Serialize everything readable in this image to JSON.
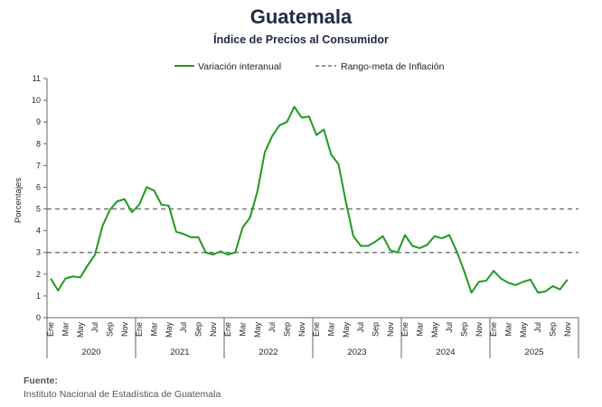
{
  "header": {
    "title": "Guatemala",
    "subtitle": "Índice de Precios al Consumidor"
  },
  "footer": {
    "label": "Fuente:",
    "source": "Instituto Nacional de Estadística de Guatemala"
  },
  "colors": {
    "series": "#1e9a1e",
    "band": "#777777",
    "axis": "#666666"
  },
  "chart_data": {
    "type": "line",
    "title": "Índice de Precios al Consumidor",
    "ylabel": "Porcentajes",
    "xlabel": "",
    "ylim": [
      0,
      11
    ],
    "yticks": [
      0,
      1,
      2,
      3,
      4,
      5,
      6,
      7,
      8,
      9,
      10,
      11
    ],
    "legend": [
      "Variación interanual",
      "Rango-meta de Inflación"
    ],
    "legend_position": "top",
    "years": [
      "2020",
      "2021",
      "2022",
      "2023",
      "2024",
      "2025"
    ],
    "month_labels": [
      "Ene",
      "Mar",
      "May",
      "Jul",
      "Sep",
      "Nov"
    ],
    "target_range": [
      3,
      5
    ],
    "series": [
      {
        "name": "Variación interanual",
        "start": "2020-01",
        "values": [
          1.8,
          1.25,
          1.8,
          1.9,
          1.85,
          2.4,
          2.9,
          4.2,
          4.95,
          5.35,
          5.45,
          4.85,
          5.2,
          6.0,
          5.85,
          5.2,
          5.15,
          3.95,
          3.85,
          3.7,
          3.7,
          3.0,
          2.9,
          3.05,
          2.9,
          3.0,
          4.15,
          4.6,
          5.8,
          7.6,
          8.35,
          8.85,
          9.0,
          9.7,
          9.2,
          9.25,
          8.4,
          8.65,
          7.5,
          7.05,
          5.3,
          3.75,
          3.3,
          3.3,
          3.5,
          3.75,
          3.1,
          3.0,
          3.8,
          3.3,
          3.2,
          3.35,
          3.75,
          3.65,
          3.8,
          3.05,
          2.15,
          1.15,
          1.65,
          1.7,
          2.15,
          1.8,
          1.6,
          1.5,
          1.65,
          1.75,
          1.15,
          1.2,
          1.45,
          1.3,
          1.75
        ]
      }
    ]
  }
}
